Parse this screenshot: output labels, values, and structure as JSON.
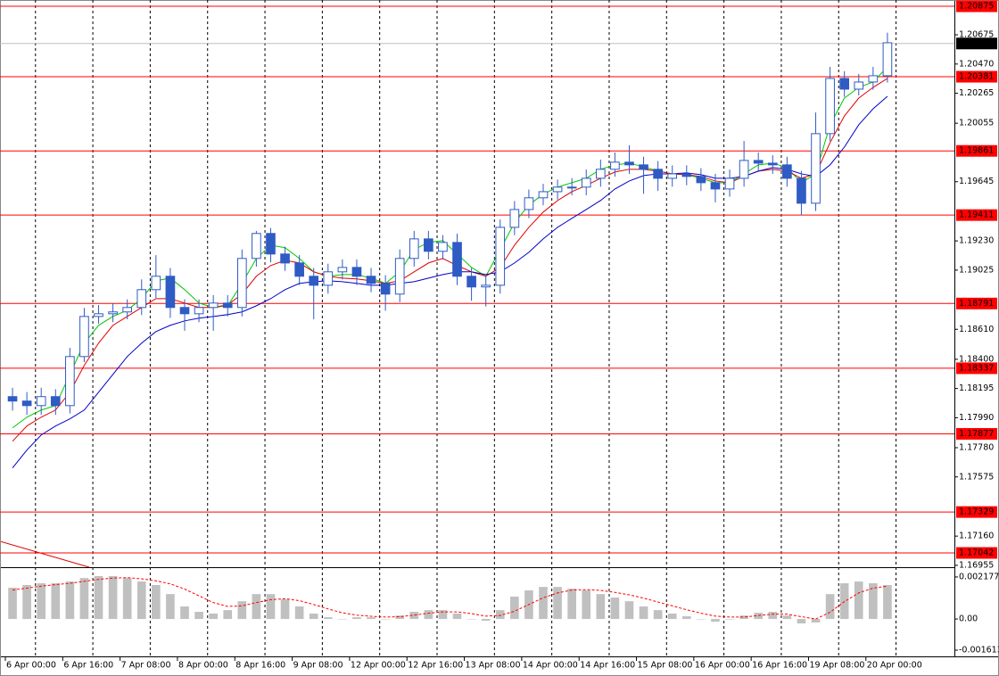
{
  "chart_data": [
    {
      "type": "candlestick",
      "color": "#2f5bc4",
      "categories": [
        "6 Apr 00:00",
        null,
        null,
        null,
        "6 Apr 16:00",
        null,
        null,
        null,
        "7 Apr 08:00",
        null,
        null,
        null,
        "8 Apr 00:00",
        null,
        null,
        null,
        "8 Apr 16:00",
        null,
        null,
        null,
        "9 Apr 08:00",
        null,
        null,
        null,
        "12 Apr 00:00",
        null,
        null,
        null,
        "12 Apr 16:00",
        null,
        null,
        null,
        "13 Apr 08:00",
        null,
        null,
        null,
        "14 Apr 00:00",
        null,
        null,
        null,
        "14 Apr 16:00",
        null,
        null,
        null,
        "15 Apr 08:00",
        null,
        null,
        null,
        "16 Apr 00:00",
        null,
        null,
        null,
        "16 Apr 16:00",
        null,
        null,
        null,
        "19 Apr 08:00",
        null,
        null,
        null,
        "20 Apr 00:00",
        null
      ],
      "open": [
        1.18138,
        1.18107,
        1.18075,
        1.18138,
        1.18075,
        1.18419,
        1.187,
        1.18719,
        1.18732,
        1.18763,
        1.18888,
        1.18982,
        1.18763,
        1.18719,
        1.18763,
        1.18794,
        1.18763,
        1.19107,
        1.19282,
        1.19138,
        1.19075,
        1.18982,
        1.18919,
        1.19013,
        1.19044,
        1.18982,
        1.18932,
        1.18857,
        1.19107,
        1.19244,
        1.19157,
        1.19219,
        1.18982,
        1.18907,
        1.18919,
        1.19325,
        1.1945,
        1.19532,
        1.19575,
        1.19607,
        1.19607,
        1.19669,
        1.19732,
        1.19782,
        1.19763,
        1.19732,
        1.19669,
        1.197,
        1.19682,
        1.19638,
        1.19594,
        1.19669,
        1.19794,
        1.19775,
        1.19763,
        1.19669,
        1.19494,
        1.19982,
        1.20369,
        1.20294,
        1.20344,
        1.20388
      ],
      "high": [
        1.182,
        1.1817,
        1.182,
        1.1819,
        1.1848,
        1.1876,
        1.1878,
        1.1879,
        1.1882,
        1.1896,
        1.1913,
        1.1904,
        1.1882,
        1.1882,
        1.1885,
        1.1885,
        1.1917,
        1.193,
        1.1932,
        1.1919,
        1.1913,
        1.1904,
        1.1907,
        1.191,
        1.191,
        1.1904,
        1.1899,
        1.1917,
        1.193,
        1.193,
        1.1927,
        1.1928,
        1.1904,
        1.1898,
        1.1938,
        1.1951,
        1.1959,
        1.1963,
        1.1966,
        1.1967,
        1.1973,
        1.198,
        1.1985,
        1.199,
        1.1982,
        1.1979,
        1.1976,
        1.1976,
        1.1974,
        1.197,
        1.1973,
        1.1993,
        1.1985,
        1.1983,
        1.1982,
        1.1972,
        1.2013,
        1.2045,
        1.2042,
        1.204,
        1.2045,
        1.2069
      ],
      "low": [
        1.1804,
        1.1801,
        1.1801,
        1.1801,
        1.1802,
        1.1838,
        1.1865,
        1.1866,
        1.1868,
        1.1871,
        1.1883,
        1.1869,
        1.186,
        1.1866,
        1.186,
        1.187,
        1.187,
        1.1905,
        1.1908,
        1.1902,
        1.1892,
        1.1868,
        1.1886,
        1.1896,
        1.1892,
        1.1887,
        1.1874,
        1.188,
        1.1905,
        1.191,
        1.191,
        1.1892,
        1.1881,
        1.1877,
        1.1886,
        1.1927,
        1.1939,
        1.1948,
        1.1952,
        1.1955,
        1.1955,
        1.1961,
        1.1968,
        1.197,
        1.1956,
        1.1958,
        1.1961,
        1.1962,
        1.1958,
        1.195,
        1.1954,
        1.1961,
        1.1972,
        1.197,
        1.1961,
        1.1941,
        1.1944,
        1.1993,
        1.2024,
        1.2025,
        1.2029,
        1.2034
      ],
      "close": [
        1.18107,
        1.18075,
        1.18138,
        1.18075,
        1.18419,
        1.187,
        1.18719,
        1.18732,
        1.18763,
        1.18888,
        1.18982,
        1.18763,
        1.18719,
        1.18763,
        1.18794,
        1.18763,
        1.19107,
        1.19282,
        1.19138,
        1.19075,
        1.18982,
        1.18919,
        1.19013,
        1.19044,
        1.18982,
        1.18932,
        1.18857,
        1.19107,
        1.19244,
        1.19157,
        1.19219,
        1.18982,
        1.18907,
        1.18919,
        1.19325,
        1.1945,
        1.19532,
        1.19575,
        1.19607,
        1.19607,
        1.19669,
        1.19732,
        1.19782,
        1.19763,
        1.19732,
        1.19669,
        1.197,
        1.19682,
        1.19638,
        1.19594,
        1.19669,
        1.19794,
        1.19775,
        1.19763,
        1.19669,
        1.19494,
        1.19982,
        1.20369,
        1.20294,
        1.20344,
        1.20388,
        1.20619
      ],
      "series": [
        {
          "color": "#00c800",
          "values": [
            1.17919,
            1.17994,
            1.18044,
            1.18075,
            1.18294,
            1.18513,
            1.18638,
            1.187,
            1.18744,
            1.18825,
            1.1895,
            1.18969,
            1.18888,
            1.18794,
            1.18763,
            1.18775,
            1.18932,
            1.19107,
            1.192,
            1.19182,
            1.19107,
            1.19013,
            1.18982,
            1.18994,
            1.18994,
            1.18969,
            1.18932,
            1.19013,
            1.19169,
            1.19219,
            1.19232,
            1.19138,
            1.19044,
            1.18982,
            1.19169,
            1.19357,
            1.19482,
            1.19557,
            1.19607,
            1.19638,
            1.19669,
            1.19732,
            1.19763,
            1.19775,
            1.1975,
            1.19719,
            1.197,
            1.19694,
            1.19669,
            1.19638,
            1.19638,
            1.197,
            1.19763,
            1.19775,
            1.19744,
            1.19638,
            1.197,
            1.20044,
            1.20231,
            1.20306,
            1.20344,
            1.2045
          ]
        },
        {
          "color": "#e00000",
          "values": [
            1.17825,
            1.17932,
            1.17994,
            1.18044,
            1.18169,
            1.18357,
            1.18513,
            1.18638,
            1.187,
            1.18763,
            1.18825,
            1.18825,
            1.18794,
            1.18763,
            1.18763,
            1.18782,
            1.18857,
            1.18982,
            1.19057,
            1.19094,
            1.19075,
            1.19013,
            1.18982,
            1.18969,
            1.18963,
            1.1895,
            1.18932,
            1.1895,
            1.19013,
            1.19075,
            1.19107,
            1.19057,
            1.19013,
            1.18982,
            1.19044,
            1.192,
            1.19325,
            1.19432,
            1.19513,
            1.19575,
            1.19619,
            1.19669,
            1.19713,
            1.19732,
            1.19732,
            1.19719,
            1.197,
            1.19694,
            1.19682,
            1.1965,
            1.19638,
            1.19682,
            1.19719,
            1.19732,
            1.19719,
            1.19669,
            1.197,
            1.19919,
            1.20106,
            1.20231,
            1.20306,
            1.20369
          ]
        },
        {
          "color": "#0000c8",
          "values": [
            1.17638,
            1.17763,
            1.17869,
            1.17932,
            1.17982,
            1.18044,
            1.18169,
            1.18294,
            1.18419,
            1.18513,
            1.18594,
            1.18638,
            1.18669,
            1.18688,
            1.187,
            1.18713,
            1.18732,
            1.18775,
            1.18825,
            1.18888,
            1.18932,
            1.18944,
            1.1895,
            1.18944,
            1.18932,
            1.18919,
            1.18919,
            1.18932,
            1.18944,
            1.18969,
            1.18994,
            1.19013,
            1.19013,
            1.18994,
            1.19013,
            1.19075,
            1.1915,
            1.19244,
            1.19325,
            1.19388,
            1.1945,
            1.19513,
            1.19594,
            1.1965,
            1.19688,
            1.197,
            1.197,
            1.19707,
            1.19694,
            1.19669,
            1.19669,
            1.19682,
            1.19719,
            1.19744,
            1.19732,
            1.197,
            1.19682,
            1.19763,
            1.19888,
            1.20044,
            1.20156,
            1.20244
          ]
        }
      ],
      "levels": [
        1.20875,
        1.20381,
        1.19861,
        1.19411,
        1.18791,
        1.18337,
        1.17877,
        1.17329,
        1.17042
      ],
      "level_color": "#ff0000",
      "last_price": 1.20614,
      "ylim": [
        1.16942,
        1.20919
      ],
      "yticks": [
        1.20675,
        {
          "value": 1.2047,
          "label": "1.20470"
        },
        1.20265,
        1.20055,
        1.19645,
        {
          "value": 1.1923,
          "label": "1.19230"
        },
        1.19025,
        {
          "value": 1.1861,
          "label": "1.18610"
        },
        {
          "value": 1.184,
          "label": "1.18400"
        },
        1.18195,
        {
          "value": 1.1799,
          "label": "1.17990"
        },
        {
          "value": 1.1778,
          "label": "1.17780"
        },
        1.17575,
        {
          "value": 1.1716,
          "label": "1.17160"
        },
        1.16955
      ],
      "grid": true
    },
    {
      "type": "bar",
      "color": "#c0c0c0",
      "values": [
        0.00162,
        0.00176,
        0.00185,
        0.00185,
        0.00194,
        0.00212,
        0.00222,
        0.00222,
        0.00212,
        0.00194,
        0.00176,
        0.00129,
        0.00065,
        0.00037,
        0.00028,
        0.00046,
        0.00092,
        0.00129,
        0.00129,
        0.00102,
        0.00065,
        0.00028,
        9e-05,
        0,
        9e-05,
        9e-05,
        0,
        0.00018,
        0.00037,
        0.00046,
        0.00046,
        0.00028,
        0,
        -9e-05,
        0.00046,
        0.00116,
        0.00148,
        0.00166,
        0.00166,
        0.00157,
        0.00148,
        0.00129,
        0.00111,
        0.00092,
        0.00065,
        0.00046,
        0.00028,
        0.00014,
        0,
        -0.00014,
        0,
        0.00018,
        0.00032,
        0.00037,
        0.00018,
        -0.00023,
        -0.00018,
        0.00129,
        0.00185,
        0.00194,
        0.00185,
        0.00176
      ],
      "series": [
        {
          "color": "#ff0000",
          "dashed": true,
          "values": [
            0.0015,
            0.0016,
            0.0017,
            0.00178,
            0.00185,
            0.00195,
            0.00205,
            0.00212,
            0.00214,
            0.00208,
            0.00198,
            0.00182,
            0.00155,
            0.0012,
            0.00085,
            0.00065,
            0.00068,
            0.00085,
            0.001,
            0.00105,
            0.00095,
            0.00075,
            0.00052,
            0.00032,
            0.0002,
            0.00014,
            0.0001,
            0.00012,
            0.0002,
            0.0003,
            0.00037,
            0.00037,
            0.00028,
            0.00015,
            0.00018,
            0.0004,
            0.00075,
            0.0011,
            0.00135,
            0.0015,
            0.00152,
            0.00148,
            0.00138,
            0.00125,
            0.00108,
            0.00088,
            0.00068,
            0.00048,
            0.0003,
            0.00015,
            0.0001,
            0.0001,
            0.00018,
            0.00025,
            0.00025,
            0.00012,
            0,
            0.00035,
            0.0009,
            0.00135,
            0.0016,
            0.0017
          ]
        }
      ],
      "ylim": [
        -0.00189,
        0.00259
      ],
      "yticks": [
        0.002177,
        {
          "value": 0,
          "label": "0.00"
        },
        -0.001613
      ]
    }
  ]
}
